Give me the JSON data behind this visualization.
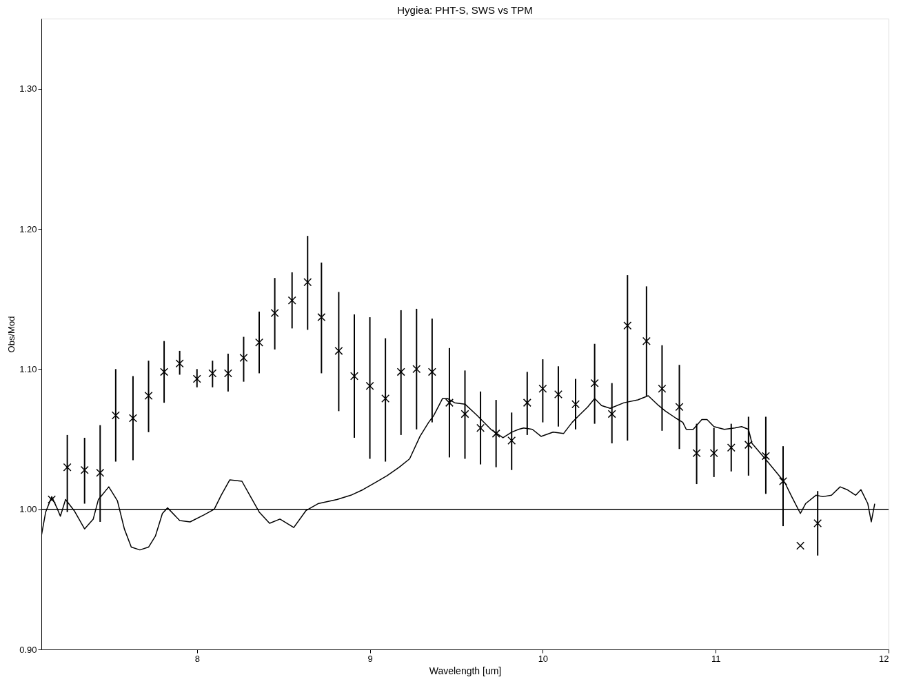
{
  "chart_data": {
    "type": "scatter",
    "title": "Hygiea: PHT-S, SWS vs TPM",
    "xlabel": "Wavelength [um]",
    "ylabel": "Obs/Mod",
    "xlim": [
      7.1,
      12.0
    ],
    "xticks": [
      8,
      9,
      10,
      11,
      12
    ],
    "ylim": [
      0.9,
      1.35
    ],
    "yticks": [
      {
        "value": 0.9,
        "label": "0.90"
      },
      {
        "value": 1.0,
        "label": "1.00"
      },
      {
        "value": 1.1,
        "label": "1.10"
      },
      {
        "value": 1.2,
        "label": "1.20"
      },
      {
        "value": 1.3,
        "label": "1.30"
      }
    ],
    "ref_lines": [
      {
        "axis": "y",
        "value": 1.0,
        "color": "#000000"
      }
    ],
    "series": [
      {
        "type": "line",
        "color": "#000000",
        "marker": "none",
        "line_style": "solid",
        "x": [
          7.1,
          7.125,
          7.16,
          7.19,
          7.21,
          7.24,
          7.29,
          7.35,
          7.4,
          7.43,
          7.49,
          7.54,
          7.58,
          7.62,
          7.67,
          7.72,
          7.76,
          7.8,
          7.83,
          7.9,
          7.96,
          8.04,
          8.1,
          8.14,
          8.19,
          8.26,
          8.31,
          8.36,
          8.42,
          8.48,
          8.56,
          8.63,
          8.7,
          8.81,
          8.89,
          8.96,
          9.03,
          9.1,
          9.17,
          9.23,
          9.29,
          9.34,
          9.37,
          9.42,
          9.45,
          9.49,
          9.55,
          9.62,
          9.7,
          9.77,
          9.82,
          9.86,
          9.89,
          9.94,
          9.99,
          10.06,
          10.12,
          10.17,
          10.21,
          10.26,
          10.3,
          10.34,
          10.39,
          10.47,
          10.55,
          10.61,
          10.67,
          10.71,
          10.77,
          10.81,
          10.83,
          10.87,
          10.92,
          10.95,
          10.99,
          11.05,
          11.11,
          11.15,
          11.19,
          11.21,
          11.3,
          11.36,
          11.4,
          11.44,
          11.49,
          11.52,
          11.58,
          11.62,
          11.67,
          11.72,
          11.76,
          11.81,
          11.84,
          11.88,
          11.9,
          11.92
        ],
        "values": [
          0.981,
          0.998,
          1.009,
          1.001,
          0.995,
          1.007,
          0.999,
          0.986,
          0.993,
          1.007,
          1.016,
          1.006,
          0.986,
          0.973,
          0.971,
          0.973,
          0.981,
          0.997,
          1.001,
          0.992,
          0.991,
          0.996,
          1.0,
          1.01,
          1.021,
          1.02,
          1.009,
          0.998,
          0.99,
          0.993,
          0.987,
          0.999,
          1.004,
          1.007,
          1.01,
          1.014,
          1.019,
          1.024,
          1.03,
          1.036,
          1.052,
          1.062,
          1.067,
          1.079,
          1.079,
          1.076,
          1.075,
          1.067,
          1.057,
          1.051,
          1.055,
          1.057,
          1.058,
          1.057,
          1.052,
          1.055,
          1.054,
          1.062,
          1.067,
          1.073,
          1.079,
          1.074,
          1.072,
          1.076,
          1.078,
          1.081,
          1.074,
          1.07,
          1.065,
          1.062,
          1.057,
          1.057,
          1.064,
          1.064,
          1.059,
          1.057,
          1.058,
          1.059,
          1.057,
          1.047,
          1.034,
          1.025,
          1.019,
          1.009,
          0.997,
          1.004,
          1.01,
          1.009,
          1.01,
          1.016,
          1.014,
          1.01,
          1.014,
          1.004,
          0.991,
          1.004
        ]
      },
      {
        "color": "#000000",
        "marker": "cross",
        "x": [
          7.16,
          7.25,
          7.35,
          7.44,
          7.53,
          7.63,
          7.72,
          7.81,
          7.9,
          8.0,
          8.09,
          8.18,
          8.27,
          8.36,
          8.45,
          8.55,
          8.64,
          8.72,
          8.82,
          8.91,
          9.0,
          9.09,
          9.18,
          9.27,
          9.36,
          9.46,
          9.55,
          9.64,
          9.73,
          9.82,
          9.91,
          10.0,
          10.09,
          10.19,
          10.3,
          10.4,
          10.49,
          10.6,
          10.69,
          10.79,
          10.89,
          10.99,
          11.09,
          11.19,
          11.29,
          11.39,
          11.49,
          11.59
        ],
        "values": [
          1.007,
          1.03,
          1.028,
          1.026,
          1.067,
          1.065,
          1.081,
          1.098,
          1.104,
          1.093,
          1.097,
          1.097,
          1.108,
          1.119,
          1.14,
          1.149,
          1.162,
          1.137,
          1.113,
          1.095,
          1.088,
          1.079,
          1.098,
          1.1,
          1.098,
          1.076,
          1.068,
          1.058,
          1.054,
          1.049,
          1.076,
          1.086,
          1.082,
          1.075,
          1.09,
          1.068,
          1.131,
          1.12,
          1.086,
          1.073,
          1.04,
          1.04,
          1.044,
          1.046,
          1.038,
          1.02,
          0.974,
          0.99
        ],
        "errors": [
          null,
          [
            0.998,
            1.053
          ],
          [
            1.004,
            1.051
          ],
          [
            0.991,
            1.06
          ],
          [
            1.034,
            1.1
          ],
          [
            1.035,
            1.095
          ],
          [
            1.055,
            1.106
          ],
          [
            1.076,
            1.12
          ],
          [
            1.096,
            1.113
          ],
          [
            1.087,
            1.1
          ],
          [
            1.087,
            1.106
          ],
          [
            1.084,
            1.111
          ],
          [
            1.091,
            1.123
          ],
          [
            1.097,
            1.141
          ],
          [
            1.114,
            1.165
          ],
          [
            1.129,
            1.169
          ],
          [
            1.128,
            1.195
          ],
          [
            1.097,
            1.176
          ],
          [
            1.07,
            1.155
          ],
          [
            1.051,
            1.139
          ],
          [
            1.036,
            1.137
          ],
          [
            1.034,
            1.122
          ],
          [
            1.053,
            1.142
          ],
          [
            1.057,
            1.143
          ],
          [
            1.062,
            1.136
          ],
          [
            1.037,
            1.115
          ],
          [
            1.036,
            1.099
          ],
          [
            1.032,
            1.084
          ],
          [
            1.03,
            1.078
          ],
          [
            1.028,
            1.069
          ],
          [
            1.053,
            1.098
          ],
          [
            1.062,
            1.107
          ],
          [
            1.059,
            1.102
          ],
          [
            1.057,
            1.093
          ],
          [
            1.061,
            1.118
          ],
          [
            1.047,
            1.09
          ],
          [
            1.049,
            1.167
          ],
          [
            1.081,
            1.159
          ],
          [
            1.056,
            1.117
          ],
          [
            1.043,
            1.103
          ],
          [
            1.018,
            1.061
          ],
          [
            1.023,
            1.058
          ],
          [
            1.027,
            1.061
          ],
          [
            1.024,
            1.066
          ],
          [
            1.011,
            1.066
          ],
          [
            0.988,
            1.045
          ],
          null,
          [
            0.967,
            1.013
          ]
        ]
      }
    ]
  }
}
